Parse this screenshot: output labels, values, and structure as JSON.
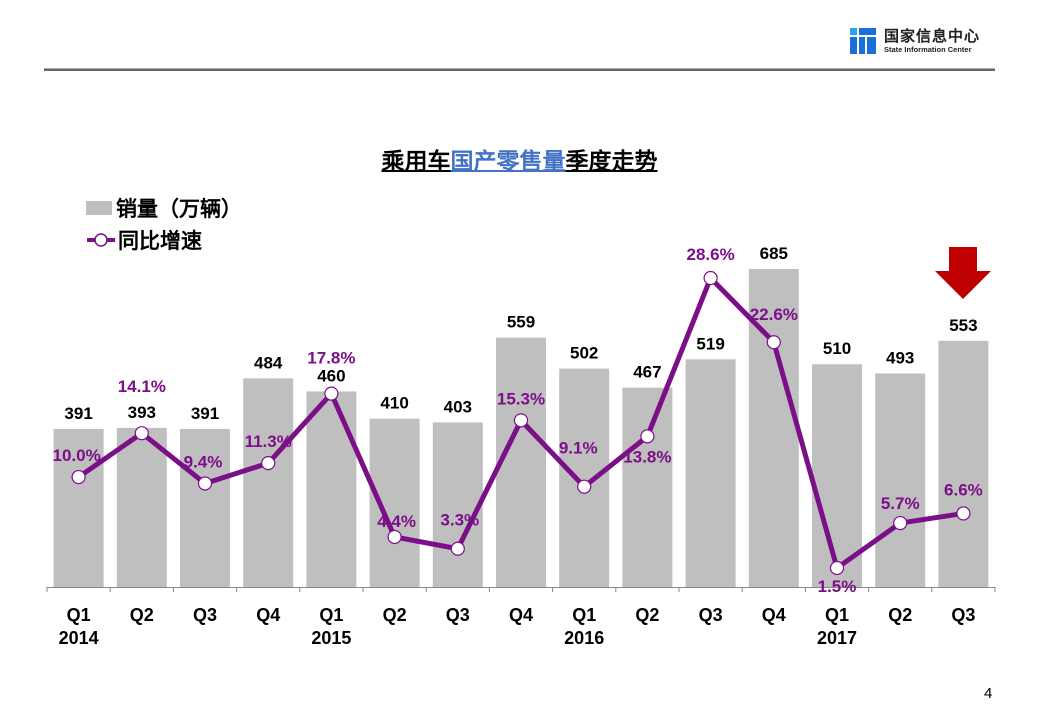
{
  "header": {
    "org_name_cn": "国家信息中心",
    "org_name_en": "State Information Center"
  },
  "title": {
    "part1": "乘用车",
    "part2": "国产零售量",
    "part3": "季度走势"
  },
  "legend": {
    "bar_label": "销量（万辆）",
    "line_label": "同比增速"
  },
  "page_number": "4",
  "colors": {
    "bar": "#bfbfbf",
    "line": "#7b0f88",
    "title_highlight": "#4472c4",
    "arrow": "#c00000"
  },
  "chart_data": {
    "type": "bar+line",
    "title": "乘用车国产零售量季度走势",
    "categories": [
      "Q1 2014",
      "Q2 2014",
      "Q3 2014",
      "Q4 2014",
      "Q1 2015",
      "Q2 2015",
      "Q3 2015",
      "Q4 2015",
      "Q1 2016",
      "Q2 2016",
      "Q3 2016",
      "Q4 2016",
      "Q1 2017",
      "Q2 2017",
      "Q3 2017"
    ],
    "x_tick_labels": [
      {
        "q": "Q1",
        "year": "2014"
      },
      {
        "q": "Q2",
        "year": ""
      },
      {
        "q": "Q3",
        "year": ""
      },
      {
        "q": "Q4",
        "year": ""
      },
      {
        "q": "Q1",
        "year": "2015"
      },
      {
        "q": "Q2",
        "year": ""
      },
      {
        "q": "Q3",
        "year": ""
      },
      {
        "q": "Q4",
        "year": ""
      },
      {
        "q": "Q1",
        "year": "2016"
      },
      {
        "q": "Q2",
        "year": ""
      },
      {
        "q": "Q3",
        "year": ""
      },
      {
        "q": "Q4",
        "year": ""
      },
      {
        "q": "Q1",
        "year": "2017"
      },
      {
        "q": "Q2",
        "year": ""
      },
      {
        "q": "Q3",
        "year": ""
      }
    ],
    "series": [
      {
        "name": "销量（万辆）",
        "type": "bar",
        "values": [
          391,
          393,
          391,
          484,
          460,
          410,
          403,
          559,
          502,
          467,
          519,
          685,
          510,
          493,
          553
        ]
      },
      {
        "name": "同比增速",
        "type": "line",
        "unit": "%",
        "values": [
          10.0,
          14.1,
          9.4,
          11.3,
          17.8,
          4.4,
          3.3,
          15.3,
          9.1,
          13.8,
          28.6,
          22.6,
          1.5,
          5.7,
          6.6
        ]
      }
    ],
    "line_labels": [
      "10.0%",
      "14.1%",
      "9.4%",
      "11.3%",
      "17.8%",
      "4.4%",
      "3.3%",
      "15.3%",
      "9.1%",
      "13.8%",
      "28.6%",
      "22.6%",
      "1.5%",
      "5.7%",
      "6.6%"
    ],
    "annotations": [
      "Red downward arrow above Q3 2017"
    ],
    "grid": false,
    "legend_position": "top-left"
  }
}
